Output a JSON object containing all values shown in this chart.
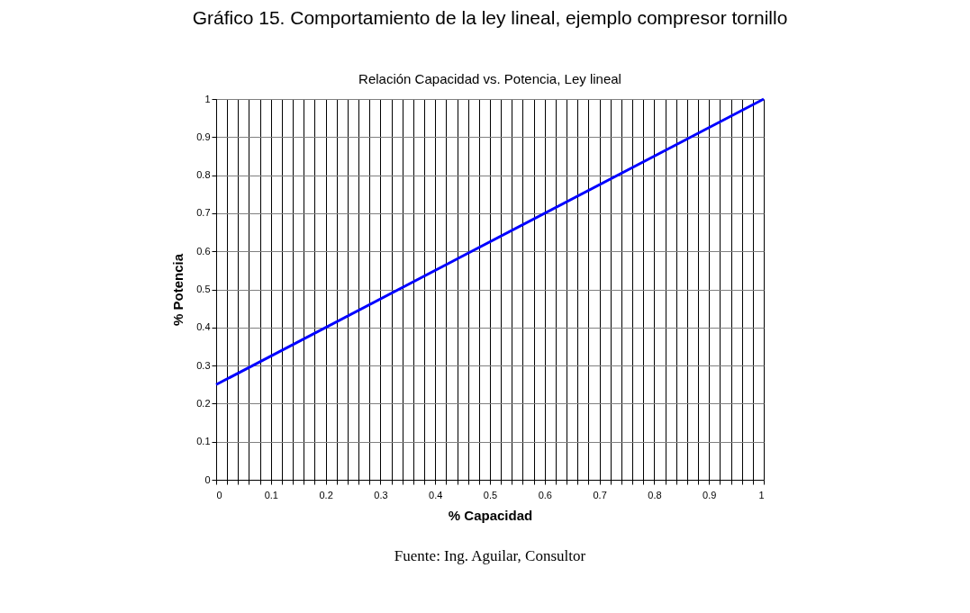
{
  "chart_data": {
    "type": "line",
    "title": "Gráfico 15. Comportamiento de la ley lineal, ejemplo compresor tornillo",
    "subtitle": "Relación Capacidad vs. Potencia, Ley lineal",
    "xlabel": "% Capacidad",
    "ylabel": "% Potencia",
    "annotations": [
      "Fuente: Ing. Aguilar, Consultor"
    ],
    "x": [
      0,
      1
    ],
    "series": [
      {
        "color": "#0000ff",
        "values": [
          0.25,
          1
        ]
      }
    ],
    "xlim": [
      0,
      1
    ],
    "ylim": [
      0,
      1
    ],
    "xticks": [
      0,
      {
        "value": 0.02,
        "label": null
      },
      {
        "value": 0.04,
        "label": null
      },
      {
        "value": 0.06,
        "label": null
      },
      {
        "value": 0.08,
        "label": null
      },
      0.1,
      {
        "value": 0.12,
        "label": null
      },
      {
        "value": 0.14,
        "label": null
      },
      {
        "value": 0.16,
        "label": null
      },
      {
        "value": 0.18,
        "label": null
      },
      0.2,
      {
        "value": 0.22,
        "label": null
      },
      {
        "value": 0.24,
        "label": null
      },
      {
        "value": 0.26,
        "label": null
      },
      {
        "value": 0.28,
        "label": null
      },
      0.3,
      {
        "value": 0.32,
        "label": null
      },
      {
        "value": 0.34,
        "label": null
      },
      {
        "value": 0.36,
        "label": null
      },
      {
        "value": 0.38,
        "label": null
      },
      0.4,
      {
        "value": 0.42,
        "label": null
      },
      {
        "value": 0.44,
        "label": null
      },
      {
        "value": 0.46,
        "label": null
      },
      {
        "value": 0.48,
        "label": null
      },
      0.5,
      {
        "value": 0.52,
        "label": null
      },
      {
        "value": 0.54,
        "label": null
      },
      {
        "value": 0.56,
        "label": null
      },
      {
        "value": 0.58,
        "label": null
      },
      0.6,
      {
        "value": 0.62,
        "label": null
      },
      {
        "value": 0.64,
        "label": null
      },
      {
        "value": 0.66,
        "label": null
      },
      {
        "value": 0.68,
        "label": null
      },
      0.7,
      {
        "value": 0.72,
        "label": null
      },
      {
        "value": 0.74,
        "label": null
      },
      {
        "value": 0.76,
        "label": null
      },
      {
        "value": 0.78,
        "label": null
      },
      0.8,
      {
        "value": 0.82,
        "label": null
      },
      {
        "value": 0.84,
        "label": null
      },
      {
        "value": 0.86,
        "label": null
      },
      {
        "value": 0.88,
        "label": null
      },
      0.9,
      {
        "value": 0.92,
        "label": null
      },
      {
        "value": 0.94,
        "label": null
      },
      {
        "value": 0.96,
        "label": null
      },
      {
        "value": 0.98,
        "label": null
      },
      1
    ],
    "yticks": [
      0,
      0.1,
      0.2,
      0.3,
      0.4,
      0.5,
      0.6,
      0.7,
      0.8,
      0.9,
      1
    ],
    "grid": true,
    "legend": false,
    "marker": "none",
    "line_style": "solid"
  }
}
